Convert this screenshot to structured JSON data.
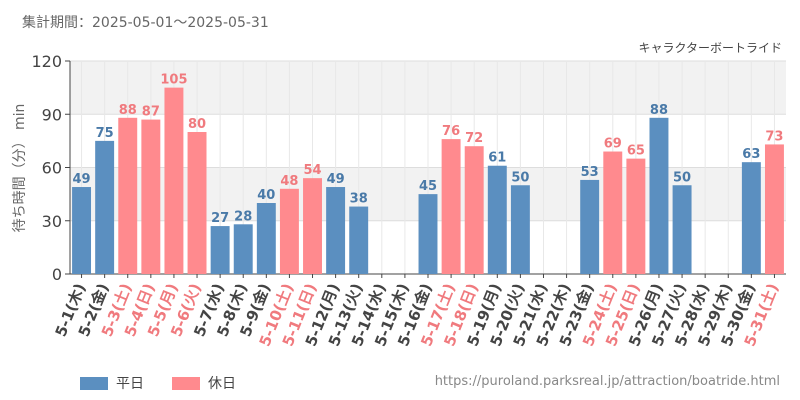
{
  "header": {
    "period": "集計期間：2025-05-01～2025-05-31",
    "attraction": "キャラクターボートライド"
  },
  "footer": {
    "source": "https://puroland.parksreal.jp/attraction/boatride.html"
  },
  "colors": {
    "weekday": "#5b8fc0",
    "holiday": "#ff8a8e",
    "weekday_text": "#4a7aa8",
    "holiday_text": "#f07a7e"
  },
  "chart_data": {
    "type": "bar",
    "ylabel": "待ち時間（分） min",
    "ylim": [
      0,
      120
    ],
    "yticks": [
      0,
      30,
      60,
      90,
      120
    ],
    "grid": true,
    "legend_position": "bottom-left",
    "series": [
      {
        "key": "weekday",
        "name": "平日"
      },
      {
        "key": "holiday",
        "name": "休日"
      }
    ],
    "categories": [
      "5-1(木)",
      "5-2(金)",
      "5-3(土)",
      "5-4(日)",
      "5-5(月)",
      "5-6(火)",
      "5-7(水)",
      "5-8(木)",
      "5-9(金)",
      "5-10(土)",
      "5-11(日)",
      "5-12(月)",
      "5-13(火)",
      "5-14(水)",
      "5-15(木)",
      "5-16(金)",
      "5-17(土)",
      "5-18(日)",
      "5-19(月)",
      "5-20(火)",
      "5-21(水)",
      "5-22(木)",
      "5-23(金)",
      "5-24(土)",
      "5-25(日)",
      "5-26(月)",
      "5-27(火)",
      "5-28(水)",
      "5-29(木)",
      "5-30(金)",
      "5-31(土)"
    ],
    "values": [
      49,
      75,
      88,
      87,
      105,
      80,
      27,
      28,
      40,
      48,
      54,
      49,
      38,
      null,
      null,
      45,
      76,
      72,
      61,
      50,
      null,
      null,
      53,
      69,
      65,
      88,
      50,
      null,
      null,
      63,
      73
    ],
    "day_type": [
      "weekday",
      "weekday",
      "holiday",
      "holiday",
      "holiday",
      "holiday",
      "weekday",
      "weekday",
      "weekday",
      "holiday",
      "holiday",
      "weekday",
      "weekday",
      "weekday",
      "weekday",
      "weekday",
      "holiday",
      "holiday",
      "weekday",
      "weekday",
      "weekday",
      "weekday",
      "weekday",
      "holiday",
      "holiday",
      "weekday",
      "weekday",
      "weekday",
      "weekday",
      "weekday",
      "holiday"
    ]
  }
}
